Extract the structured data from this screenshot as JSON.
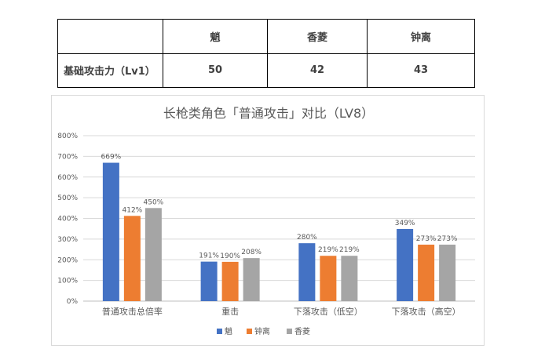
{
  "table": {
    "header": [
      "",
      "魈",
      "香菱",
      "钟离"
    ],
    "rows": [
      {
        "label": "基础攻击力（Lv1）",
        "values": [
          "50",
          "42",
          "43"
        ]
      }
    ]
  },
  "chart_data": {
    "type": "bar",
    "title": "长枪类角色「普通攻击」对比（LV8）",
    "categories": [
      "普通攻击总倍率",
      "重击",
      "下落攻击（低空）",
      "下落攻击（高空）"
    ],
    "series": [
      {
        "name": "魈",
        "color": "#4472c4",
        "values": [
          669,
          191,
          280,
          349
        ],
        "labels": [
          "669%",
          "191%",
          "280%",
          "349%"
        ]
      },
      {
        "name": "钟离",
        "color": "#ed7d31",
        "values": [
          412,
          190,
          219,
          273
        ],
        "labels": [
          "412%",
          "190%",
          "219%",
          "273%"
        ]
      },
      {
        "name": "香菱",
        "color": "#a5a5a5",
        "values": [
          450,
          208,
          219,
          273
        ],
        "labels": [
          "450%",
          "208%",
          "219%",
          "273%"
        ]
      }
    ],
    "ylim": [
      0,
      800
    ],
    "yticks": [
      "0%",
      "100%",
      "200%",
      "300%",
      "400%",
      "500%",
      "600%",
      "700%",
      "800%"
    ],
    "grid": true,
    "legend_position": "bottom"
  }
}
